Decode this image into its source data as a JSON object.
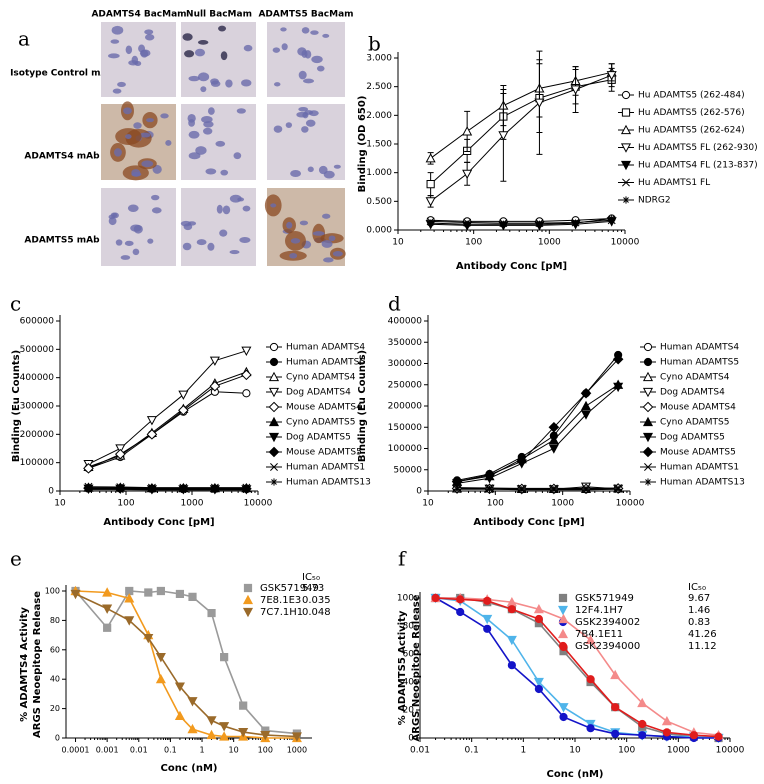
{
  "panel_a": {
    "label": "a",
    "columns": [
      "ADAMTS4 BacMam",
      "Null BacMam",
      "ADAMTS5 BacMam"
    ],
    "rows": [
      "Isotype Control mAb",
      "ADAMTS4 mAb",
      "ADAMTS5 mAb"
    ]
  },
  "chart_data": [
    {
      "panel": "b",
      "type": "line",
      "ylabel": "Binding (OD 650)",
      "xlabel": "Antibody Conc [pM]",
      "xscale": "log",
      "legend": "right",
      "xlim": [
        10,
        10000
      ],
      "xticks": [
        10,
        100,
        1000,
        10000
      ],
      "ylim": [
        0,
        3
      ],
      "yticks": [
        {
          "value": 0,
          "label": "0.000"
        },
        {
          "value": 0.5,
          "label": "0.500"
        },
        {
          "value": 1,
          "label": "1.000"
        },
        {
          "value": 1.5,
          "label": "1.500"
        },
        {
          "value": 2,
          "label": "2.000"
        },
        {
          "value": 2.5,
          "label": "2.500"
        },
        {
          "value": 3,
          "label": "3.000"
        }
      ],
      "x": [
        27,
        82,
        247,
        740,
        2222,
        6667
      ],
      "series": [
        {
          "name": "Hu ADAMTS5 (262-484)",
          "marker": "circle-open",
          "color": "#000000",
          "values": [
            0.17,
            0.15,
            0.15,
            0.15,
            0.17,
            0.2
          ]
        },
        {
          "name": "Hu ADAMTS5 (262-576)",
          "marker": "square-open",
          "color": "#000000",
          "values": [
            0.8,
            1.38,
            1.98,
            2.3,
            2.5,
            2.62
          ],
          "errors": [
            0.2,
            0.2,
            0.4,
            0.6,
            0.3,
            0.2
          ]
        },
        {
          "name": "Hu ADAMTS5 (262-624)",
          "marker": "triangle-open",
          "color": "#000000",
          "values": [
            1.25,
            1.72,
            2.17,
            2.47,
            2.6,
            2.75
          ],
          "errors": [
            0.1,
            0.35,
            0.35,
            0.5,
            0.25,
            0.15
          ]
        },
        {
          "name": "Hu ADAMTS5 FL (262-930)",
          "marker": "triangle-down-open",
          "color": "#000000",
          "values": [
            0.5,
            0.98,
            1.65,
            2.22,
            2.45,
            2.7
          ],
          "errors": [
            0.1,
            0.2,
            0.8,
            0.9,
            0.4,
            0.2
          ]
        },
        {
          "name": "Hu ADAMTS4 FL (213-837)",
          "marker": "triangle-down",
          "color": "#000000",
          "values": [
            0.1,
            0.08,
            0.08,
            0.08,
            0.1,
            0.15
          ]
        },
        {
          "name": "Hu ADAMTS1 FL",
          "marker": "x",
          "color": "#000000",
          "values": [
            0.15,
            0.13,
            0.12,
            0.12,
            0.13,
            0.17
          ]
        },
        {
          "name": "NDRG2",
          "marker": "asterisk",
          "color": "#000000",
          "values": [
            0.12,
            0.1,
            0.1,
            0.1,
            0.12,
            0.2
          ]
        }
      ]
    },
    {
      "panel": "c",
      "type": "line",
      "ylabel": "Binding (Eu Counts)",
      "xlabel": "Antibody Conc [pM]",
      "xscale": "log",
      "legend": "right",
      "xlim": [
        10,
        10000
      ],
      "xticks": [
        10,
        100,
        1000,
        10000
      ],
      "ylim": [
        0,
        600000
      ],
      "yticks": [
        0,
        100000,
        200000,
        300000,
        400000,
        500000,
        600000
      ],
      "x": [
        27,
        82,
        247,
        740,
        2222,
        6667
      ],
      "series": [
        {
          "name": "Human ADAMTS4",
          "marker": "circle-open",
          "color": "#000000",
          "values": [
            80000,
            120000,
            200000,
            280000,
            350000,
            345000
          ]
        },
        {
          "name": "Human ADAMTS5",
          "marker": "circle",
          "color": "#000000",
          "values": [
            10000,
            10000,
            8000,
            8000,
            8000,
            8000
          ]
        },
        {
          "name": "Cyno ADAMTS4",
          "marker": "triangle-open",
          "color": "#000000",
          "values": [
            85000,
            125000,
            205000,
            290000,
            380000,
            420000
          ]
        },
        {
          "name": "Dog ADAMTS4",
          "marker": "triangle-down-open",
          "color": "#000000",
          "values": [
            95000,
            150000,
            250000,
            340000,
            460000,
            495000
          ]
        },
        {
          "name": "Mouse ADAMTS4",
          "marker": "diamond-open",
          "color": "#000000",
          "values": [
            80000,
            130000,
            200000,
            285000,
            370000,
            410000
          ]
        },
        {
          "name": "Cyno ADAMTS5",
          "marker": "triangle",
          "color": "#000000",
          "values": [
            12000,
            12000,
            10000,
            10000,
            10000,
            10000
          ]
        },
        {
          "name": "Dog ADAMTS5",
          "marker": "triangle-down",
          "color": "#000000",
          "values": [
            8000,
            8000,
            6000,
            6000,
            6000,
            6000
          ]
        },
        {
          "name": "Mouse ADAMTS5",
          "marker": "diamond",
          "color": "#000000",
          "values": [
            10000,
            10000,
            8000,
            8000,
            8000,
            8000
          ]
        },
        {
          "name": "Human ADAMTS1",
          "marker": "x",
          "color": "#000000",
          "values": [
            15000,
            14000,
            12000,
            12000,
            12000,
            12000
          ]
        },
        {
          "name": "Human ADAMTS13",
          "marker": "asterisk",
          "color": "#000000",
          "values": [
            5000,
            5000,
            4000,
            4000,
            4000,
            4000
          ]
        }
      ]
    },
    {
      "panel": "d",
      "type": "line",
      "ylabel": "Binding (Eu Counts)",
      "xlabel": "Antibody Conc [pM]",
      "xscale": "log",
      "legend": "right",
      "xlim": [
        10,
        10000
      ],
      "xticks": [
        10,
        100,
        1000,
        10000
      ],
      "ylim": [
        0,
        400000
      ],
      "yticks": [
        0,
        50000,
        100000,
        150000,
        200000,
        250000,
        300000,
        350000,
        400000
      ],
      "x": [
        27,
        82,
        247,
        740,
        2222,
        6667
      ],
      "series": [
        {
          "name": "Human ADAMTS4",
          "marker": "circle-open",
          "color": "#000000",
          "values": [
            5000,
            5000,
            4000,
            4000,
            4000,
            5000
          ]
        },
        {
          "name": "Human ADAMTS5",
          "marker": "circle",
          "color": "#000000",
          "values": [
            25000,
            40000,
            80000,
            130000,
            230000,
            320000
          ]
        },
        {
          "name": "Cyno ADAMTS4",
          "marker": "triangle-open",
          "color": "#000000",
          "values": [
            6000,
            6000,
            5000,
            5000,
            5000,
            6000
          ]
        },
        {
          "name": "Dog ADAMTS4",
          "marker": "triangle-down-open",
          "color": "#000000",
          "values": [
            5000,
            5000,
            4000,
            4000,
            10000,
            5000
          ]
        },
        {
          "name": "Mouse ADAMTS4",
          "marker": "diamond-open",
          "color": "#000000",
          "values": [
            6000,
            5000,
            5000,
            5000,
            5000,
            6000
          ]
        },
        {
          "name": "Cyno ADAMTS5",
          "marker": "triangle",
          "color": "#000000",
          "values": [
            22000,
            35000,
            75000,
            120000,
            200000,
            250000
          ]
        },
        {
          "name": "Dog ADAMTS5",
          "marker": "triangle-down",
          "color": "#000000",
          "values": [
            18000,
            30000,
            65000,
            100000,
            180000,
            245000
          ]
        },
        {
          "name": "Mouse ADAMTS5",
          "marker": "diamond",
          "color": "#000000",
          "values": [
            22000,
            38000,
            70000,
            150000,
            230000,
            310000
          ]
        },
        {
          "name": "Human ADAMTS1",
          "marker": "x",
          "color": "#000000",
          "values": [
            8000,
            7000,
            6000,
            6000,
            6000,
            7000
          ]
        },
        {
          "name": "Human ADAMTS13",
          "marker": "asterisk",
          "color": "#000000",
          "values": [
            4000,
            4000,
            3000,
            3000,
            3000,
            4000
          ]
        }
      ]
    },
    {
      "panel": "e",
      "type": "line",
      "ylabel": [
        "% ADAMTS4 Activity",
        "ARGS Neoepitope Release"
      ],
      "xlabel": "Conc (nM)",
      "xscale": "log",
      "legend": "upper right",
      "ic50_header": "IC₅₀",
      "xlim": [
        5e-05,
        3000
      ],
      "xticks": [
        0.0001,
        0.001,
        0.01,
        0.1,
        1,
        10,
        100,
        1000
      ],
      "ylim": [
        0,
        100
      ],
      "yticks": [
        0,
        20,
        40,
        60,
        80,
        100
      ],
      "x": [
        0.0001,
        0.001,
        0.005,
        0.02,
        0.05,
        0.2,
        0.5,
        2,
        5,
        20,
        100,
        1000
      ],
      "series": [
        {
          "name": "GSK571949",
          "marker": "square",
          "color": "#9a9a9a",
          "ic50": 5.73,
          "values": [
            100,
            75,
            100,
            99,
            100,
            98,
            96,
            85,
            55,
            22,
            5,
            3
          ]
        },
        {
          "name": "7E8.1E3",
          "marker": "triangle",
          "color": "#f29a1e",
          "ic50": 0.035,
          "values": [
            100,
            99,
            95,
            70,
            40,
            15,
            6,
            2,
            1,
            1,
            0,
            0
          ]
        },
        {
          "name": "7C7.1H1",
          "marker": "triangle-down",
          "color": "#9a6a2a",
          "ic50": 0.048,
          "values": [
            98,
            88,
            80,
            68,
            55,
            35,
            25,
            12,
            8,
            4,
            2,
            1
          ]
        }
      ]
    },
    {
      "panel": "f",
      "type": "line",
      "ylabel": [
        "% ADAMTS5 Activity",
        "ARGS Neoepitope Release"
      ],
      "xlabel": "Conc (nM)",
      "xscale": "log",
      "legend": "upper right",
      "ic50_header": "IC₅₀",
      "xlim": [
        0.01,
        10000
      ],
      "xticks": [
        0.01,
        0.1,
        1,
        10,
        100,
        1000,
        10000
      ],
      "ylim": [
        0,
        100
      ],
      "yticks": [
        0,
        20,
        40,
        60,
        80,
        100
      ],
      "x": [
        0.02,
        0.06,
        0.2,
        0.6,
        2,
        6,
        20,
        60,
        200,
        600,
        2000,
        6000
      ],
      "series": [
        {
          "name": "GSK571949",
          "marker": "square",
          "color": "#808080",
          "ic50": 9.67,
          "values": [
            100,
            100,
            97,
            92,
            82,
            62,
            40,
            22,
            8,
            3,
            1,
            0
          ]
        },
        {
          "name": "12F4.1H7",
          "marker": "triangle-down",
          "color": "#4fb4ea",
          "ic50": 1.46,
          "values": [
            100,
            98,
            85,
            70,
            40,
            22,
            10,
            4,
            2,
            1,
            1,
            0
          ]
        },
        {
          "name": "GSK2394002",
          "marker": "circle",
          "color": "#1414c8",
          "ic50": 0.83,
          "values": [
            100,
            90,
            78,
            52,
            35,
            15,
            7,
            3,
            2,
            1,
            0,
            0
          ]
        },
        {
          "name": "7B4.1E11",
          "marker": "triangle",
          "color": "#f48a8a",
          "ic50": 41.26,
          "values": [
            100,
            100,
            99,
            97,
            92,
            85,
            70,
            45,
            25,
            12,
            4,
            2
          ]
        },
        {
          "name": "GSK2394000",
          "marker": "circle",
          "color": "#e01c1c",
          "ic50": 11.12,
          "values": [
            100,
            99,
            98,
            92,
            85,
            65,
            42,
            22,
            10,
            4,
            2,
            1
          ]
        }
      ]
    }
  ]
}
